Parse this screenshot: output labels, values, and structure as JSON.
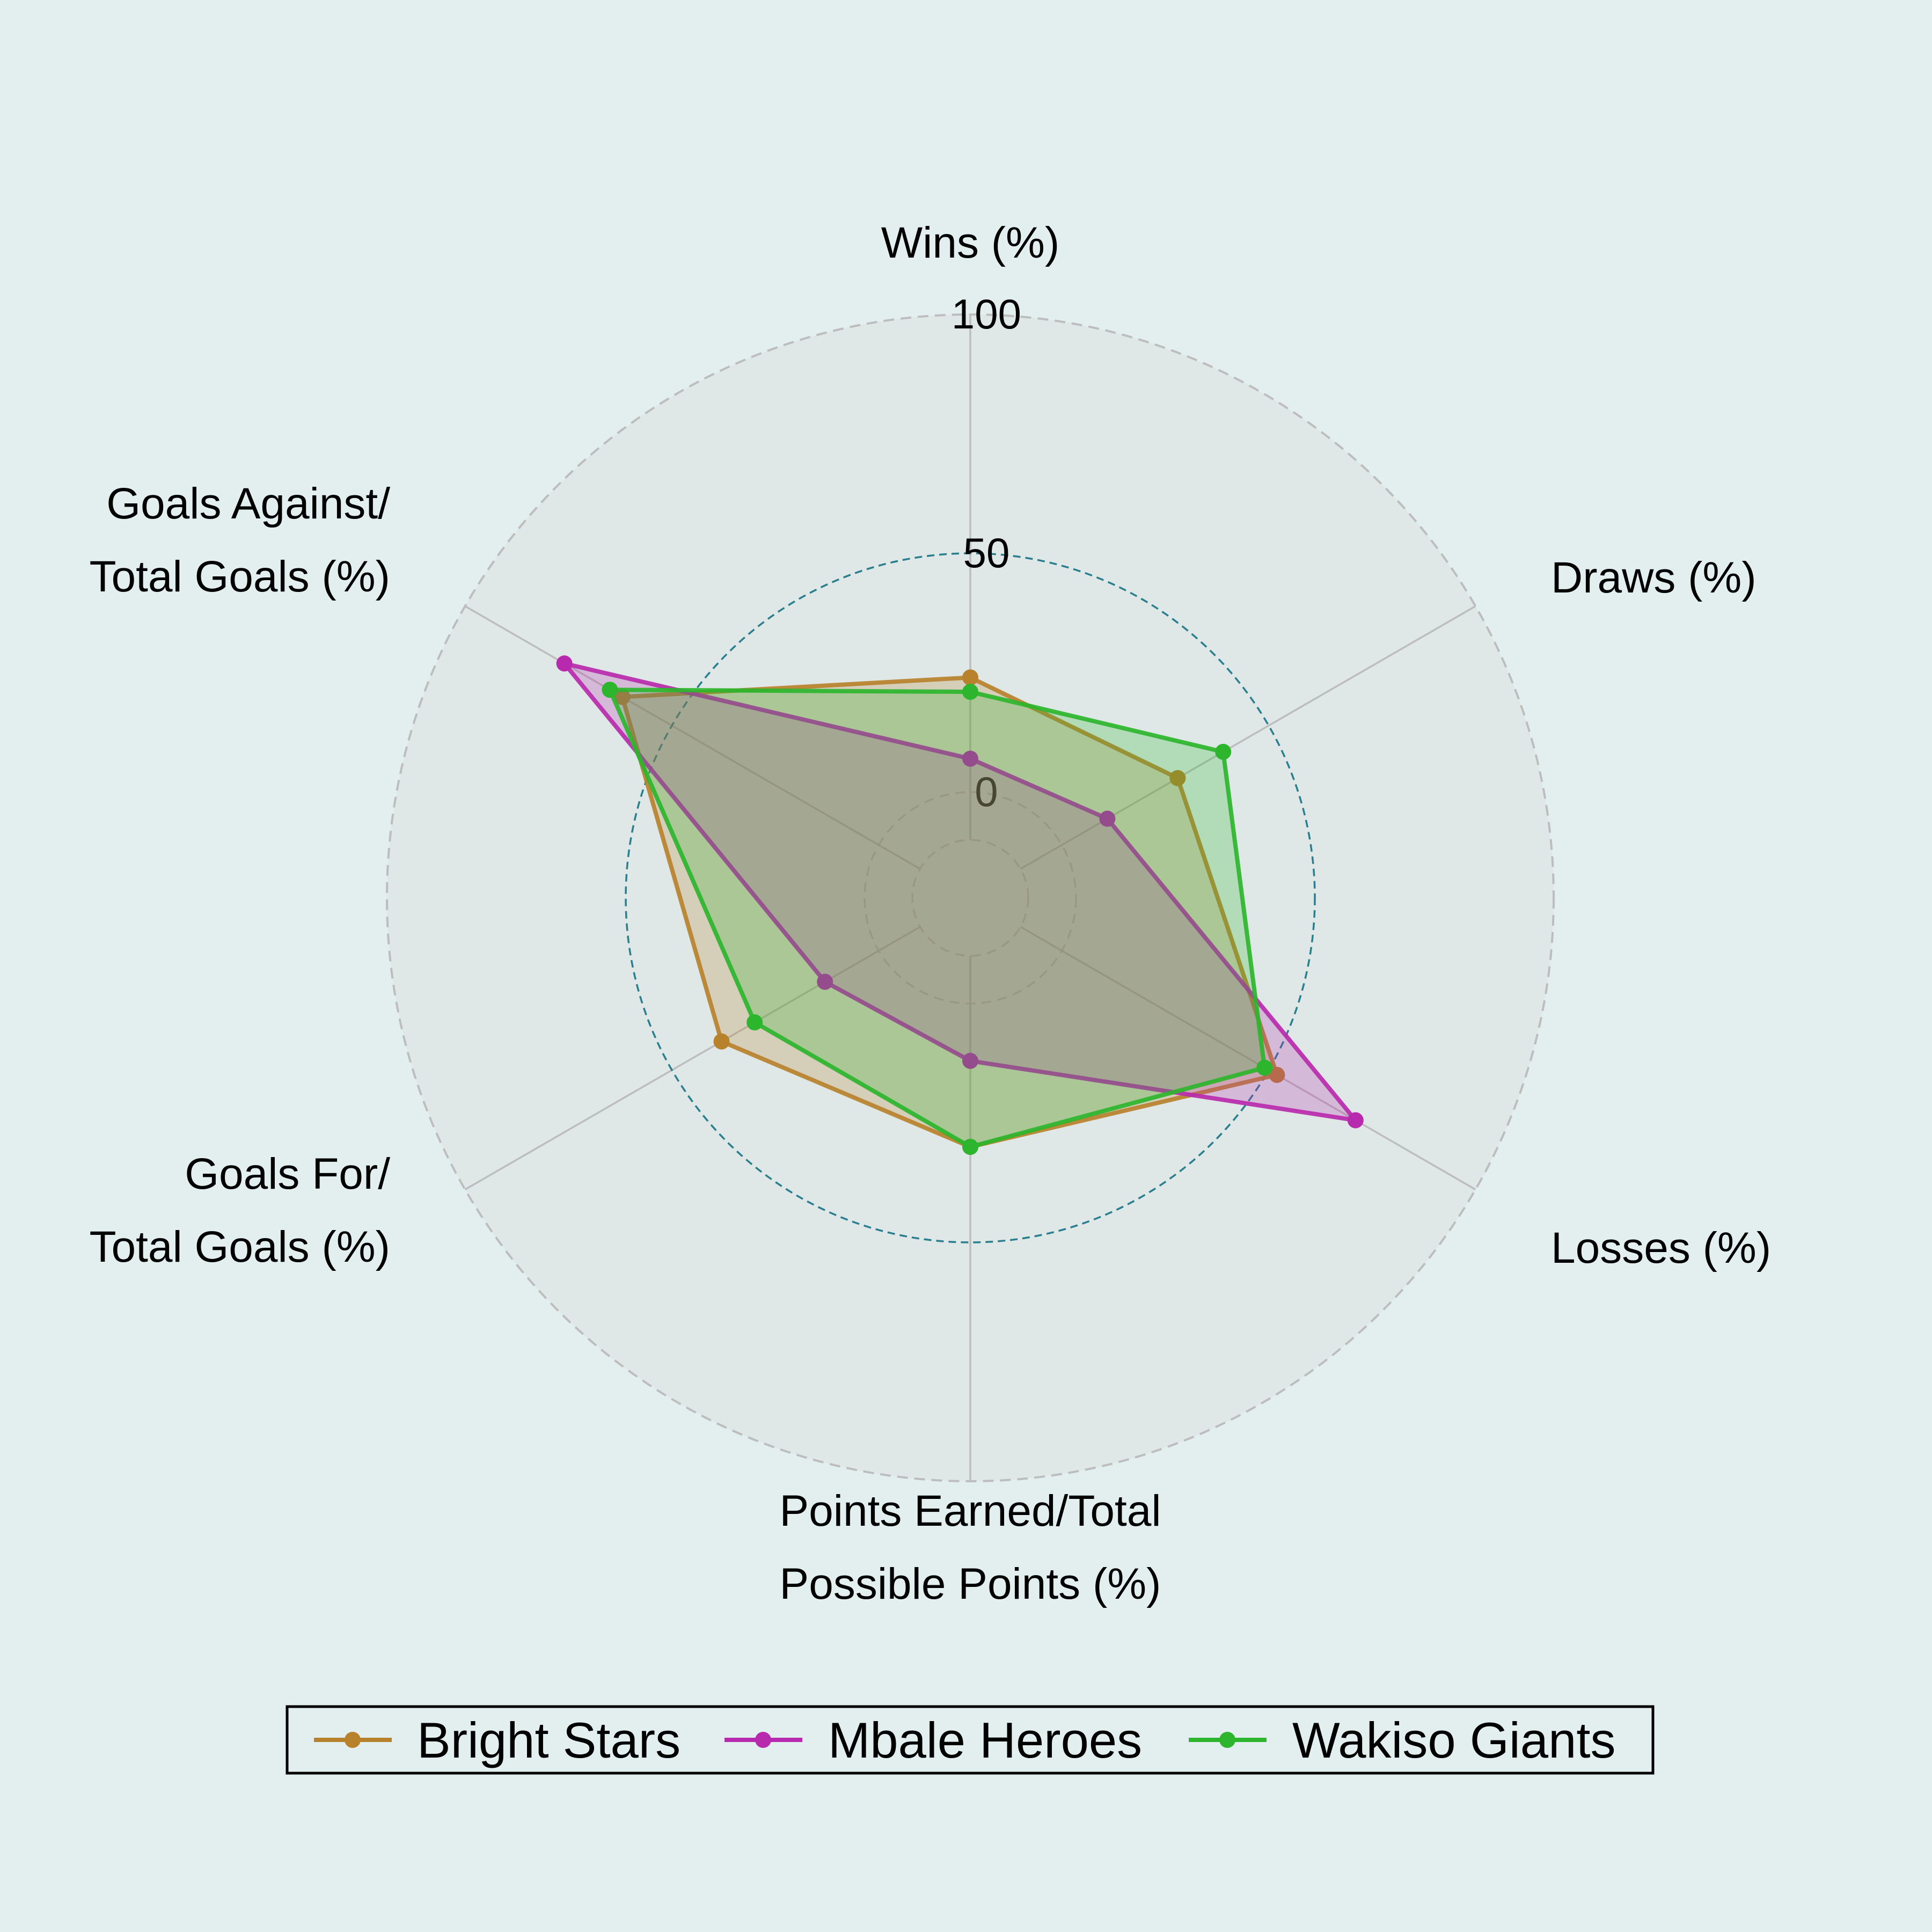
{
  "chart_data": {
    "type": "radar",
    "axes": [
      "Wins (%)",
      "Draws (%)",
      "Losses (%)",
      "Points Earned/Total Possible Points (%)",
      "Goals For/ Total Goals (%)",
      "Goals Against/ Total Goals (%)"
    ],
    "axis_label_lines": [
      [
        "Wins (%)"
      ],
      [
        "Draws (%)"
      ],
      [
        "Losses (%)"
      ],
      [
        "Points Earned/Total",
        "Possible Points (%)"
      ],
      [
        "Goals For/",
        "Total Goals (%)"
      ],
      [
        "Goals Against/",
        "Total Goals (%)"
      ]
    ],
    "r_ticks": [
      0,
      50,
      100
    ],
    "r_range": [
      -10,
      100
    ],
    "grid": true,
    "legend_position": "bottom",
    "series": [
      {
        "name": "Bright Stars",
        "color": "#b8812c",
        "values": [
          24,
          28,
          52,
          30,
          38,
          62
        ]
      },
      {
        "name": "Mbale Heroes",
        "color": "#b82aad",
        "values": [
          7,
          11,
          71,
          12,
          13,
          76
        ]
      },
      {
        "name": "Wakiso Giants",
        "color": "#2db52d",
        "values": [
          21,
          39,
          49,
          30,
          30,
          65
        ]
      }
    ]
  }
}
